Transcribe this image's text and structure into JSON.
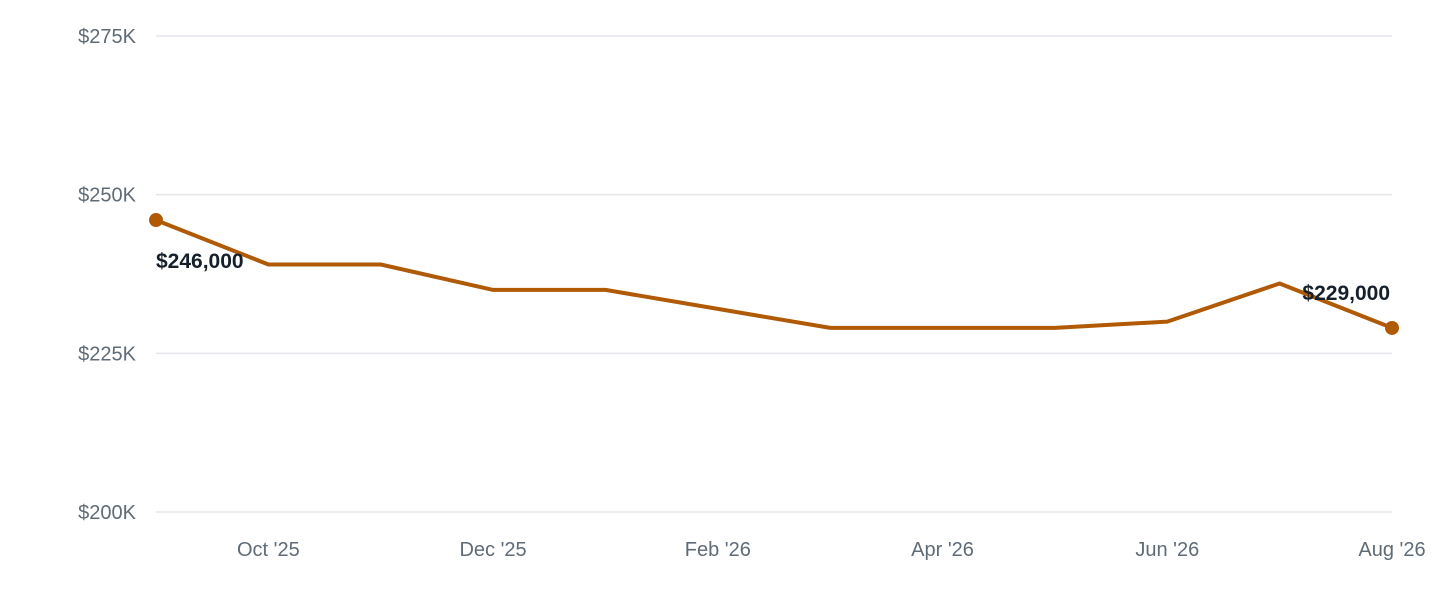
{
  "chart_data": {
    "type": "line",
    "title": "",
    "xlabel": "",
    "ylabel": "",
    "ylim": [
      200000,
      275000
    ],
    "y_ticks": [
      {
        "value": 275000,
        "label": "$275K"
      },
      {
        "value": 250000,
        "label": "$250K"
      },
      {
        "value": 225000,
        "label": "$225K"
      },
      {
        "value": 200000,
        "label": "$200K"
      }
    ],
    "x_range": [
      "2025-09",
      "2026-08"
    ],
    "x_ticks": [
      {
        "x": "2025-10",
        "label": "Oct '25"
      },
      {
        "x": "2025-12",
        "label": "Dec '25"
      },
      {
        "x": "2026-02",
        "label": "Feb '26"
      },
      {
        "x": "2026-04",
        "label": "Apr '26"
      },
      {
        "x": "2026-06",
        "label": "Jun '26"
      },
      {
        "x": "2026-08",
        "label": "Aug '26"
      }
    ],
    "grid": true,
    "legend": "none",
    "series": [
      {
        "color": "#b05a06",
        "points": [
          {
            "x": "2025-09",
            "y": 246000
          },
          {
            "x": "2025-10",
            "y": 239000
          },
          {
            "x": "2025-11",
            "y": 239000
          },
          {
            "x": "2025-12",
            "y": 235000
          },
          {
            "x": "2026-01",
            "y": 235000
          },
          {
            "x": "2026-02",
            "y": 232000
          },
          {
            "x": "2026-03",
            "y": 229000
          },
          {
            "x": "2026-04",
            "y": 229000
          },
          {
            "x": "2026-05",
            "y": 229000
          },
          {
            "x": "2026-06",
            "y": 230000
          },
          {
            "x": "2026-07",
            "y": 236000
          },
          {
            "x": "2026-08",
            "y": 229000
          }
        ]
      }
    ],
    "annotations": [
      {
        "x": "2025-09",
        "y": 246000,
        "label": "$246,000"
      },
      {
        "x": "2026-08",
        "y": 229000,
        "label": "$229,000"
      }
    ]
  }
}
